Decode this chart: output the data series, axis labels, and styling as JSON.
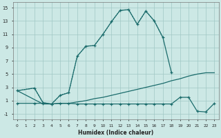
{
  "xlabel": "Humidex (Indice chaleur)",
  "bg_color": "#cce8e5",
  "line_color": "#1a6b6b",
  "grid_color": "#a0c8c5",
  "xlim": [
    -0.5,
    23.5
  ],
  "ylim": [
    -1.8,
    15.8
  ],
  "xtick_labels": [
    "0",
    "1",
    "2",
    "3",
    "4",
    "5",
    "6",
    "7",
    "8",
    "9",
    "10",
    "11",
    "12",
    "13",
    "14",
    "15",
    "16",
    "17",
    "18",
    "19",
    "20",
    "21",
    "22",
    "23"
  ],
  "ytick_vals": [
    -1,
    1,
    3,
    5,
    7,
    9,
    11,
    13,
    15
  ],
  "s1_x": [
    0,
    2,
    3,
    4,
    5,
    6,
    7,
    8,
    9,
    10,
    11,
    12,
    13,
    14,
    15,
    16,
    17
  ],
  "s1_y": [
    2.5,
    2.9,
    0.7,
    0.5,
    1.8,
    2.2,
    7.7,
    9.2,
    9.3,
    11.0,
    12.9,
    14.6,
    14.7,
    12.5,
    14.5,
    13.0,
    10.5
  ],
  "s2_x": [
    0,
    2,
    3,
    4,
    5,
    6,
    7,
    8,
    9,
    10,
    11,
    12,
    13,
    14,
    15,
    16,
    17,
    18
  ],
  "s2_y": [
    2.5,
    2.9,
    0.7,
    0.5,
    1.8,
    2.2,
    7.7,
    9.2,
    9.3,
    11.0,
    12.9,
    14.6,
    14.7,
    12.5,
    14.5,
    13.0,
    10.5,
    5.2
  ],
  "s3_x": [
    0,
    3,
    4,
    5,
    6,
    7,
    8,
    9,
    10,
    11,
    12,
    13,
    14,
    15,
    16,
    17,
    18,
    19,
    20,
    21,
    22,
    23
  ],
  "s3_y": [
    2.5,
    0.5,
    0.5,
    0.6,
    0.6,
    0.8,
    1.0,
    1.3,
    1.5,
    1.8,
    2.1,
    2.4,
    2.7,
    3.0,
    3.3,
    3.6,
    4.0,
    4.3,
    4.7,
    5.0,
    5.2,
    5.2
  ],
  "s4_x": [
    0,
    2,
    3,
    4,
    5,
    6,
    7,
    8,
    9,
    10,
    11,
    12,
    13,
    14,
    15,
    16,
    17,
    18,
    19,
    20,
    21,
    22,
    23
  ],
  "s4_y": [
    0.6,
    0.6,
    0.6,
    0.5,
    0.6,
    0.6,
    0.5,
    0.5,
    0.5,
    0.5,
    0.5,
    0.5,
    0.5,
    0.5,
    0.5,
    0.5,
    0.5,
    0.5,
    1.5,
    1.5,
    -0.6,
    -0.7,
    0.6
  ]
}
